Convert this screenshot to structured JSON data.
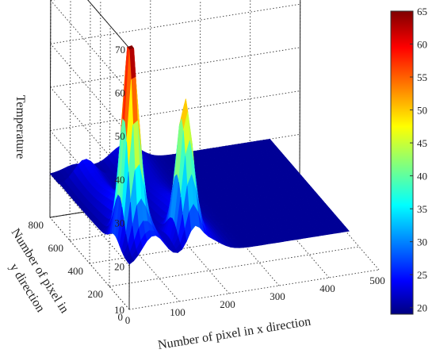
{
  "chart_data": {
    "type": "surface",
    "title": "",
    "xlabel": "Number of pixel in x direction",
    "ylabel": "Number of pixel in y direction",
    "zlabel": "Temperature",
    "xlim": [
      0,
      500
    ],
    "ylim": [
      0,
      800
    ],
    "zlim": [
      10,
      70
    ],
    "x_ticks": [
      "0",
      "100",
      "200",
      "300",
      "400",
      "500"
    ],
    "y_ticks": [
      "0",
      "200",
      "400",
      "600",
      "800"
    ],
    "z_ticks": [
      "10",
      "20",
      "30",
      "40",
      "50",
      "60",
      "70"
    ],
    "grid": true,
    "colormap": "jet",
    "colorbar": {
      "range": [
        19,
        65
      ],
      "ticks": [
        "20",
        "25",
        "30",
        "35",
        "40",
        "45",
        "50",
        "55",
        "60",
        "65"
      ],
      "position": "right"
    },
    "surface": {
      "base_temperature": 20,
      "features": [
        {
          "kind": "ridge",
          "x_center": 50,
          "x_width": 30,
          "y_extent": [
            0,
            700
          ],
          "amplitude": 8
        },
        {
          "kind": "ridge",
          "x_center": 150,
          "x_width": 40,
          "y_extent": [
            0,
            800
          ],
          "amplitude": 5
        },
        {
          "kind": "peak",
          "x": 30,
          "y": 150,
          "temperature": 64
        },
        {
          "kind": "peak",
          "x": 130,
          "y": 100,
          "temperature": 50
        }
      ]
    },
    "colors": {
      "jet_low": "#00007f",
      "jet_mid_blue": "#0000ff",
      "jet_cyan": "#00ffff",
      "jet_yellow": "#ffff00",
      "jet_red": "#ff0000",
      "jet_high": "#7f0000"
    }
  }
}
